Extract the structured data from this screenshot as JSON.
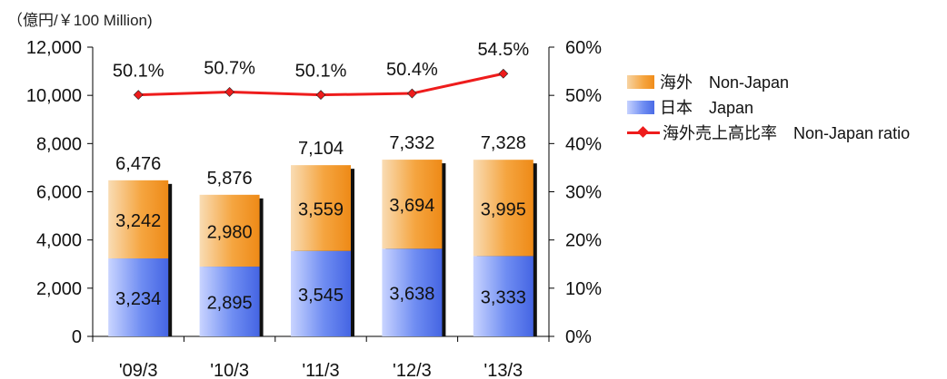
{
  "unit_label": "（億円/￥100 Million)",
  "legend": {
    "overseas": "海外　Non-Japan",
    "japan": "日本　Japan",
    "ratio": "海外売上高比率　Non-Japan ratio"
  },
  "colors": {
    "overseas": "#f5a540",
    "japan": "#6f8df2",
    "ratio_line": "#ee1c1c"
  },
  "chart_data": {
    "type": "bar",
    "stacked": true,
    "categories": [
      "'09/3",
      "'10/3",
      "'11/3",
      "'12/3",
      "'13/3"
    ],
    "series": [
      {
        "name": "日本　Japan",
        "values": [
          3234,
          2895,
          3545,
          3638,
          3333
        ]
      },
      {
        "name": "海外　Non-Japan",
        "values": [
          3242,
          2980,
          3559,
          3694,
          3995
        ]
      }
    ],
    "totals": [
      6476,
      5876,
      7104,
      7332,
      7328
    ],
    "line_series": {
      "name": "海外売上高比率　Non-Japan ratio",
      "axis": "right",
      "values": [
        50.1,
        50.7,
        50.1,
        50.4,
        54.5
      ]
    },
    "ylim": [
      0,
      12000
    ],
    "yticks": [
      0,
      2000,
      4000,
      6000,
      8000,
      10000,
      12000
    ],
    "y2lim": [
      0,
      60
    ],
    "y2ticks": [
      0,
      10,
      20,
      30,
      40,
      50,
      60
    ],
    "legend_position": "right",
    "grid": false
  }
}
